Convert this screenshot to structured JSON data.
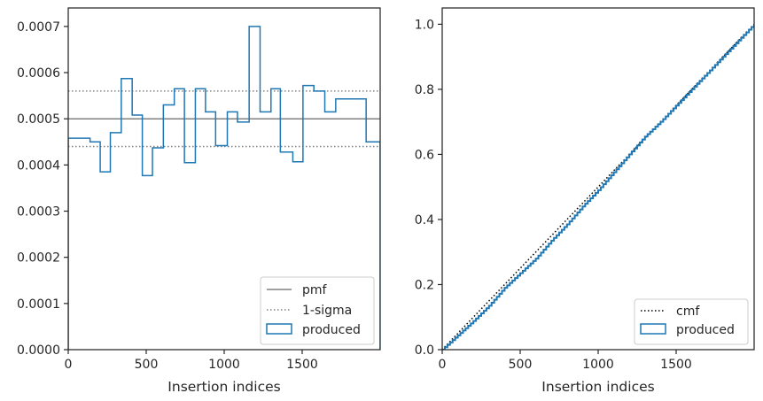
{
  "chart_data": [
    {
      "type": "line",
      "xlabel": "Insertion indices",
      "ylabel": "",
      "xlim": [
        0,
        2000
      ],
      "ylim": [
        0,
        0.00074
      ],
      "x_ticks": [
        0,
        500,
        1000,
        1500
      ],
      "x_tick_labels": [
        "0",
        "500",
        "1000",
        "1500"
      ],
      "y_ticks": [
        0,
        0.0001,
        0.0002,
        0.0003,
        0.0004,
        0.0005,
        0.0006,
        0.0007
      ],
      "y_tick_labels": [
        "0.0000",
        "0.0001",
        "0.0002",
        "0.0003",
        "0.0004",
        "0.0005",
        "0.0006",
        "0.0007"
      ],
      "grid": false,
      "legend_position": "lower-right",
      "reference_lines": [
        {
          "name": "pmf",
          "style": "solid",
          "color": "#808080",
          "y": 0.0005
        },
        {
          "name": "1-sigma",
          "style": "dotted",
          "color": "#808080",
          "y": [
            0.00044,
            0.00056
          ]
        }
      ],
      "series": [
        {
          "name": "produced",
          "kind": "step-histogram",
          "color": "#1f77b4",
          "bin_edges": [
            0,
            140,
            205,
            270,
            340,
            410,
            475,
            540,
            610,
            680,
            745,
            815,
            880,
            945,
            1020,
            1085,
            1160,
            1230,
            1300,
            1360,
            1440,
            1505,
            1575,
            1645,
            1715,
            1910,
            2000
          ],
          "values": [
            0.000458,
            0.00045,
            0.000385,
            0.00047,
            0.000587,
            0.000508,
            0.000377,
            0.000437,
            0.00053,
            0.000565,
            0.000405,
            0.000565,
            0.000515,
            0.000442,
            0.000515,
            0.000493,
            0.0007,
            0.000515,
            0.000565,
            0.000428,
            0.000407,
            0.000572,
            0.00056,
            0.000515,
            0.000543,
            0.00045
          ]
        }
      ]
    },
    {
      "type": "line",
      "xlabel": "Insertion indices",
      "ylabel": "",
      "xlim": [
        0,
        2000
      ],
      "ylim": [
        0,
        1.05
      ],
      "x_ticks": [
        0,
        500,
        1000,
        1500
      ],
      "x_tick_labels": [
        "0",
        "500",
        "1000",
        "1500"
      ],
      "y_ticks": [
        0.0,
        0.2,
        0.4,
        0.6,
        0.8,
        1.0
      ],
      "y_tick_labels": [
        "0.0",
        "0.2",
        "0.4",
        "0.6",
        "0.8",
        "1.0"
      ],
      "grid": false,
      "legend_position": "lower-right",
      "series": [
        {
          "name": "cmf",
          "style": "dotted",
          "color": "#000000",
          "x": [
            0,
            2000
          ],
          "y": [
            0.0,
            1.0
          ]
        },
        {
          "name": "produced",
          "kind": "step-cumulative",
          "color": "#1f77b4",
          "x": [
            0,
            100,
            200,
            300,
            400,
            500,
            600,
            700,
            800,
            900,
            1000,
            1100,
            1200,
            1300,
            1400,
            1500,
            1600,
            1700,
            1800,
            1900,
            2000
          ],
          "y": [
            0.0,
            0.044,
            0.088,
            0.135,
            0.19,
            0.235,
            0.28,
            0.335,
            0.385,
            0.44,
            0.49,
            0.545,
            0.6,
            0.655,
            0.7,
            0.75,
            0.8,
            0.85,
            0.9,
            0.95,
            1.0
          ]
        }
      ]
    }
  ],
  "legends": [
    {
      "entries": [
        {
          "label": "pmf",
          "style": "solid",
          "color": "#808080"
        },
        {
          "label": "1-sigma",
          "style": "dotted",
          "color": "#808080"
        },
        {
          "label": "produced",
          "style": "patch",
          "color": "#1f77b4"
        }
      ]
    },
    {
      "entries": [
        {
          "label": "cmf",
          "style": "dotted",
          "color": "#000000"
        },
        {
          "label": "produced",
          "style": "patch",
          "color": "#1f77b4"
        }
      ]
    }
  ]
}
